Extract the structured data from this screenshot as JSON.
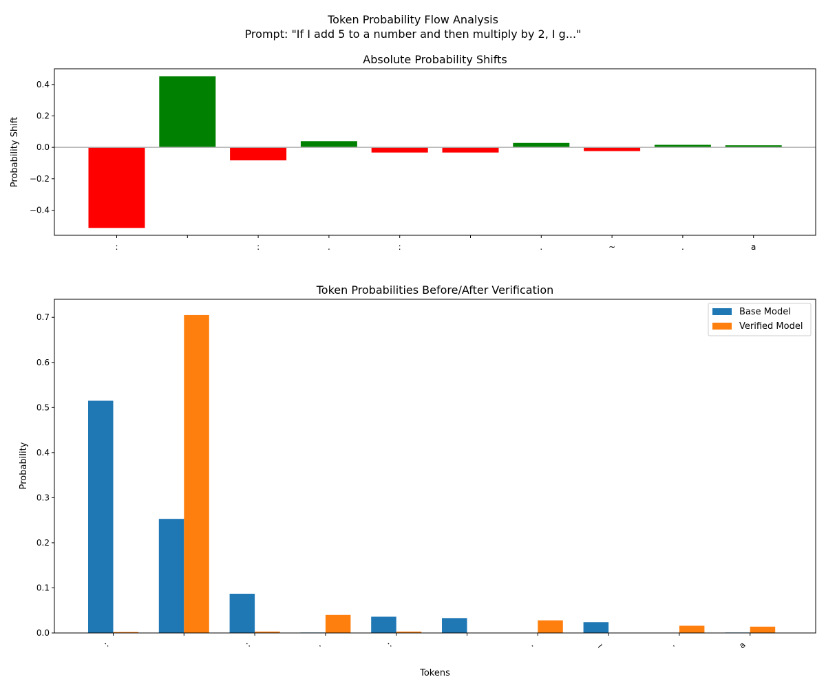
{
  "figure": {
    "suptitle_line1": "Token Probability Flow Analysis",
    "suptitle_line2": "Prompt: \"If I add 5 to a number and then multiply by 2, I g...\""
  },
  "chart_data": [
    {
      "type": "bar",
      "title": "Absolute Probability Shifts",
      "ylabel": "Probability Shift",
      "xlabel": "",
      "categories": [
        ":",
        "",
        ":",
        ".",
        ":",
        "",
        ".",
        "~",
        ".",
        "a"
      ],
      "values": [
        -0.513,
        0.452,
        -0.083,
        0.039,
        -0.033,
        -0.033,
        0.028,
        -0.024,
        0.016,
        0.013
      ],
      "ylim": [
        -0.56,
        0.5
      ],
      "yticks": [
        -0.4,
        -0.2,
        0.0,
        0.2,
        0.4
      ],
      "ytick_labels": [
        "−0.4",
        "−0.2",
        "0.0",
        "0.2",
        "0.4"
      ],
      "colors": {
        "positive": "#008000",
        "negative": "#ff0000",
        "zero_line": "#b0b0b0"
      },
      "grid": false
    },
    {
      "type": "bar",
      "title": "Token Probabilities Before/After Verification",
      "ylabel": "Probability",
      "xlabel": "Tokens",
      "categories": [
        ":",
        "",
        ":",
        ".",
        ":",
        "",
        ".",
        "~",
        ".",
        "a"
      ],
      "series": [
        {
          "name": "Base Model",
          "color": "#1f77b4",
          "values": [
            0.515,
            0.253,
            0.087,
            0.001,
            0.036,
            0.033,
            0.0,
            0.024,
            0.0,
            0.001
          ]
        },
        {
          "name": "Verified Model",
          "color": "#ff7f0e",
          "values": [
            0.002,
            0.705,
            0.003,
            0.04,
            0.003,
            0.0,
            0.028,
            0.0,
            0.016,
            0.014
          ]
        }
      ],
      "ylim": [
        0,
        0.74
      ],
      "yticks": [
        0.0,
        0.1,
        0.2,
        0.3,
        0.4,
        0.5,
        0.6,
        0.7
      ],
      "ytick_labels": [
        "0.0",
        "0.1",
        "0.2",
        "0.3",
        "0.4",
        "0.5",
        "0.6",
        "0.7"
      ],
      "legend": "top-right",
      "grid": false
    }
  ]
}
